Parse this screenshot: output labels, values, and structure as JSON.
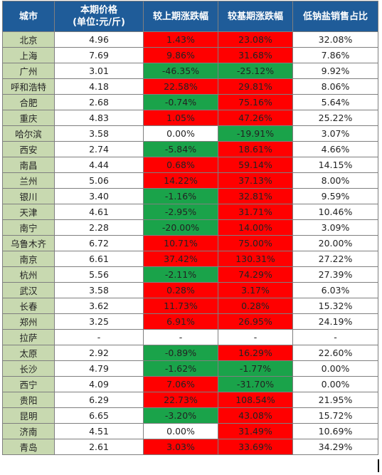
{
  "colors": {
    "header_bg": "#1f5c99",
    "city_bg": "#c8d9b0",
    "increase": "#ff0000",
    "decrease": "#1aa34a"
  },
  "header": {
    "city": "城市",
    "price_line1": "本期价格",
    "price_line2": "(单位:元/斤)",
    "vs_prev": "较上期涨跌幅",
    "vs_base": "较基期涨跌幅",
    "low_sodium_share": "低钠盐销售占比"
  },
  "rows": [
    {
      "city": "北京",
      "price": "4.96",
      "prev": "1.43%",
      "prev_dir": "up",
      "base": "23.08%",
      "base_dir": "up",
      "share": "32.08%"
    },
    {
      "city": "上海",
      "price": "7.69",
      "prev": "9.86%",
      "prev_dir": "up",
      "base": "31.68%",
      "base_dir": "up",
      "share": "7.86%"
    },
    {
      "city": "广州",
      "price": "3.01",
      "prev": "-46.35%",
      "prev_dir": "down",
      "base": "-25.12%",
      "base_dir": "down",
      "share": "9.92%"
    },
    {
      "city": "呼和浩特",
      "price": "4.18",
      "prev": "22.58%",
      "prev_dir": "up",
      "base": "29.81%",
      "base_dir": "up",
      "share": "8.06%"
    },
    {
      "city": "合肥",
      "price": "2.68",
      "prev": "-0.74%",
      "prev_dir": "down",
      "base": "75.16%",
      "base_dir": "up",
      "share": "5.64%"
    },
    {
      "city": "重庆",
      "price": "4.83",
      "prev": "1.05%",
      "prev_dir": "up",
      "base": "47.26%",
      "base_dir": "up",
      "share": "25.22%"
    },
    {
      "city": "哈尔滨",
      "price": "3.58",
      "prev": "0.00%",
      "prev_dir": "none",
      "base": "-19.91%",
      "base_dir": "down",
      "share": "3.07%"
    },
    {
      "city": "西安",
      "price": "2.74",
      "prev": "-5.84%",
      "prev_dir": "down",
      "base": "18.61%",
      "base_dir": "up",
      "share": "4.66%"
    },
    {
      "city": "南昌",
      "price": "4.44",
      "prev": "0.68%",
      "prev_dir": "up",
      "base": "59.14%",
      "base_dir": "up",
      "share": "14.15%"
    },
    {
      "city": "兰州",
      "price": "5.06",
      "prev": "14.22%",
      "prev_dir": "up",
      "base": "37.13%",
      "base_dir": "up",
      "share": "8.00%"
    },
    {
      "city": "银川",
      "price": "3.40",
      "prev": "-1.16%",
      "prev_dir": "down",
      "base": "32.81%",
      "base_dir": "up",
      "share": "9.59%"
    },
    {
      "city": "天津",
      "price": "4.61",
      "prev": "-2.95%",
      "prev_dir": "down",
      "base": "31.71%",
      "base_dir": "up",
      "share": "10.46%"
    },
    {
      "city": "南宁",
      "price": "2.28",
      "prev": "-20.00%",
      "prev_dir": "down",
      "base": "14.00%",
      "base_dir": "up",
      "share": "3.09%"
    },
    {
      "city": "乌鲁木齐",
      "price": "6.72",
      "prev": "10.71%",
      "prev_dir": "up",
      "base": "75.00%",
      "base_dir": "up",
      "share": "20.00%"
    },
    {
      "city": "南京",
      "price": "6.61",
      "prev": "37.42%",
      "prev_dir": "up",
      "base": "130.31%",
      "base_dir": "up",
      "share": "27.22%"
    },
    {
      "city": "杭州",
      "price": "5.56",
      "prev": "-2.11%",
      "prev_dir": "down",
      "base": "74.29%",
      "base_dir": "up",
      "share": "27.39%"
    },
    {
      "city": "武汉",
      "price": "3.58",
      "prev": "0.28%",
      "prev_dir": "up",
      "base": "3.17%",
      "base_dir": "up",
      "share": "6.03%"
    },
    {
      "city": "长春",
      "price": "3.62",
      "prev": "11.73%",
      "prev_dir": "up",
      "base": "0.28%",
      "base_dir": "up",
      "share": "15.32%"
    },
    {
      "city": "郑州",
      "price": "3.25",
      "prev": "6.91%",
      "prev_dir": "up",
      "base": "26.95%",
      "base_dir": "up",
      "share": "24.19%"
    },
    {
      "city": "拉萨",
      "price": "-",
      "prev": "-",
      "prev_dir": "none",
      "base": "-",
      "base_dir": "none",
      "share": "-"
    },
    {
      "city": "太原",
      "price": "2.92",
      "prev": "-0.89%",
      "prev_dir": "down",
      "base": "16.29%",
      "base_dir": "up",
      "share": "22.60%"
    },
    {
      "city": "长沙",
      "price": "4.79",
      "prev": "-1.62%",
      "prev_dir": "down",
      "base": "-1.77%",
      "base_dir": "down",
      "share": "0.00%"
    },
    {
      "city": "西宁",
      "price": "4.09",
      "prev": "7.06%",
      "prev_dir": "up",
      "base": "-31.70%",
      "base_dir": "down",
      "share": "0.00%"
    },
    {
      "city": "贵阳",
      "price": "6.29",
      "prev": "22.73%",
      "prev_dir": "up",
      "base": "108.54%",
      "base_dir": "up",
      "share": "21.95%"
    },
    {
      "city": "昆明",
      "price": "6.65",
      "prev": "-3.20%",
      "prev_dir": "down",
      "base": "43.08%",
      "base_dir": "up",
      "share": "15.72%"
    },
    {
      "city": "济南",
      "price": "4.51",
      "prev": "0.00%",
      "prev_dir": "none",
      "base": "31.49%",
      "base_dir": "up",
      "share": "10.69%"
    },
    {
      "city": "青岛",
      "price": "2.61",
      "prev": "3.03%",
      "prev_dir": "up",
      "base": "33.69%",
      "base_dir": "up",
      "share": "34.29%"
    }
  ]
}
